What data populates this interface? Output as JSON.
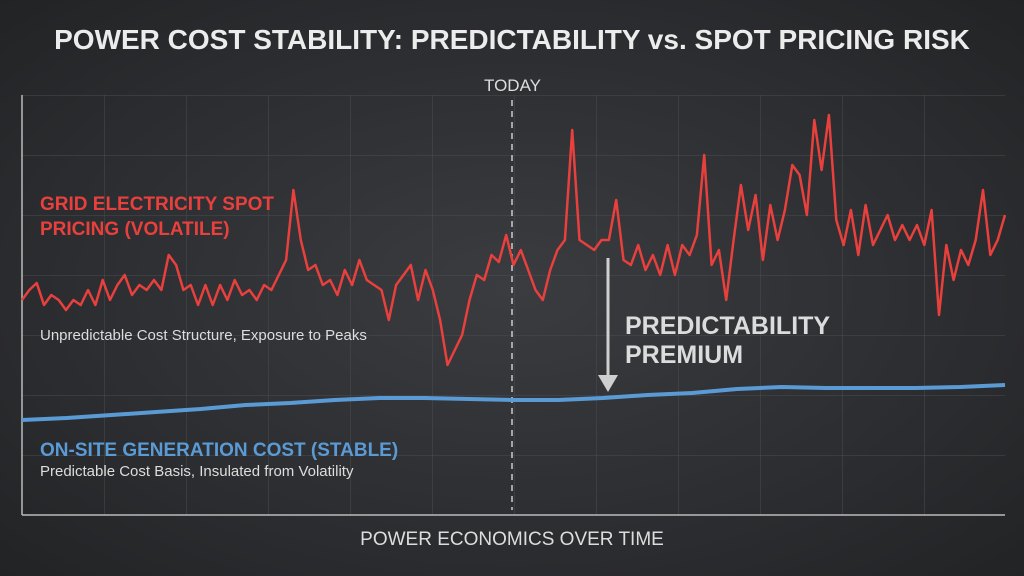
{
  "chart_data": {
    "type": "line",
    "title": "POWER COST STABILITY: PREDICTABILITY vs. SPOT PRICING RISK",
    "x_label": "POWER ECONOMICS OVER TIME",
    "ylim": [
      0,
      420
    ],
    "marker": "TODAY",
    "annotations": [
      "Unpredictable Cost Structure, Exposure to Peaks",
      "Predictable Cost Basis, Insulated from Volatility",
      "PREDICTABILITY PREMIUM"
    ],
    "series": [
      {
        "name": "GRID ELECTRICITY SPOT PRICING (VOLATILE)",
        "color": "#e8403d",
        "values": [
          215,
          225,
          232,
          210,
          220,
          215,
          205,
          215,
          210,
          225,
          210,
          235,
          215,
          230,
          240,
          220,
          230,
          225,
          235,
          225,
          260,
          250,
          225,
          230,
          210,
          230,
          210,
          230,
          215,
          235,
          220,
          225,
          215,
          230,
          225,
          240,
          255,
          325,
          275,
          245,
          250,
          230,
          235,
          220,
          245,
          230,
          255,
          235,
          230,
          225,
          195,
          230,
          240,
          250,
          215,
          245,
          225,
          195,
          150,
          165,
          180,
          215,
          240,
          235,
          260,
          253,
          280,
          250,
          265,
          245,
          225,
          215,
          245,
          265,
          275,
          385,
          275,
          270,
          265,
          275,
          275,
          315,
          255,
          250,
          270,
          245,
          260,
          240,
          270,
          240,
          270,
          260,
          280,
          360,
          250,
          265,
          215,
          275,
          330,
          285,
          320,
          255,
          310,
          275,
          305,
          350,
          340,
          300,
          395,
          345,
          400,
          295,
          270,
          305,
          260,
          310,
          270,
          285,
          300,
          275,
          290,
          275,
          290,
          270,
          305,
          200,
          270,
          235,
          265,
          250,
          275,
          325,
          260,
          275,
          300
        ]
      },
      {
        "name": "ON-SITE GENERATION COST (STABLE)",
        "color": "#5b9bd5",
        "values": [
          95,
          97,
          100,
          103,
          106,
          110,
          112,
          115,
          117,
          117,
          116,
          115,
          115,
          117,
          120,
          122,
          126,
          128,
          127,
          127,
          127,
          128,
          130
        ]
      }
    ]
  }
}
